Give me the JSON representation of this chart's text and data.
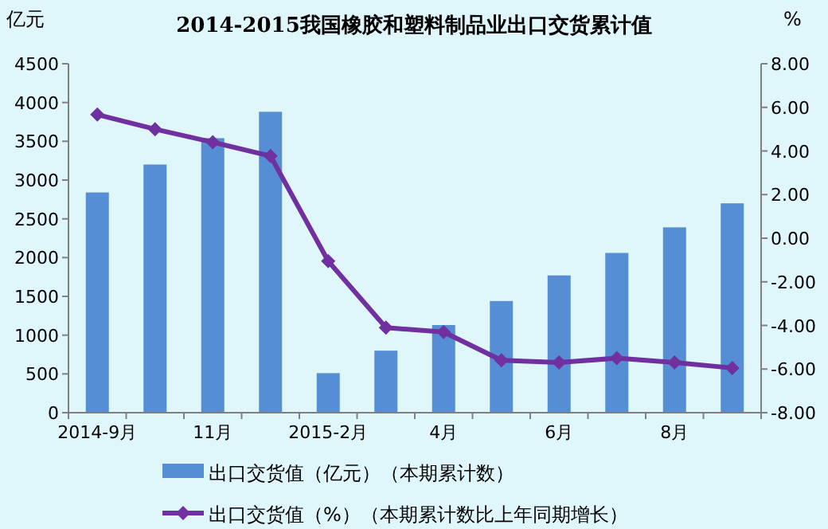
{
  "chart_data": {
    "type": "bar",
    "title": "2014-2015我国橡胶和塑料制品业出口交货累计值",
    "ylabel": "亿元",
    "y2label": "%",
    "categories": [
      "2014-9月",
      null,
      "11月",
      null,
      "2015-2月",
      null,
      "4月",
      null,
      "6月",
      null,
      "8月",
      null
    ],
    "series": [
      {
        "name": "出口交货值（亿元）（本期累计数）",
        "color": "#558ed5",
        "values": [
          2840,
          3200,
          3540,
          3880,
          510,
          800,
          1130,
          1440,
          1770,
          2060,
          2390,
          2700
        ]
      },
      {
        "name": "出口交货值（%）（本期累计数比上年同期增长）",
        "type": "line",
        "axis": "y2",
        "color": "#7030a0",
        "marker": "diamond",
        "values": [
          5.67,
          5.0,
          4.4,
          3.77,
          -1.05,
          -4.1,
          -4.3,
          -5.6,
          -5.7,
          -5.5,
          -5.7,
          -5.95
        ]
      }
    ],
    "ylim": [
      0,
      4500
    ],
    "yticks": [
      0,
      500,
      1000,
      1500,
      2000,
      2500,
      3000,
      3500,
      4000,
      4500
    ],
    "y2lim": [
      -8,
      8
    ],
    "y2ticks": [
      {
        "value": -8,
        "label": "-8.00"
      },
      {
        "value": -6,
        "label": "-6.00"
      },
      {
        "value": -4,
        "label": "-4.00"
      },
      {
        "value": -2,
        "label": "-2.00"
      },
      {
        "value": 0,
        "label": "0.00"
      },
      {
        "value": 2,
        "label": "2.00"
      },
      {
        "value": 4,
        "label": "4.00"
      },
      {
        "value": 6,
        "label": "6.00"
      },
      {
        "value": 8,
        "label": "8.00"
      }
    ],
    "grid": false,
    "legend": "bottom"
  }
}
